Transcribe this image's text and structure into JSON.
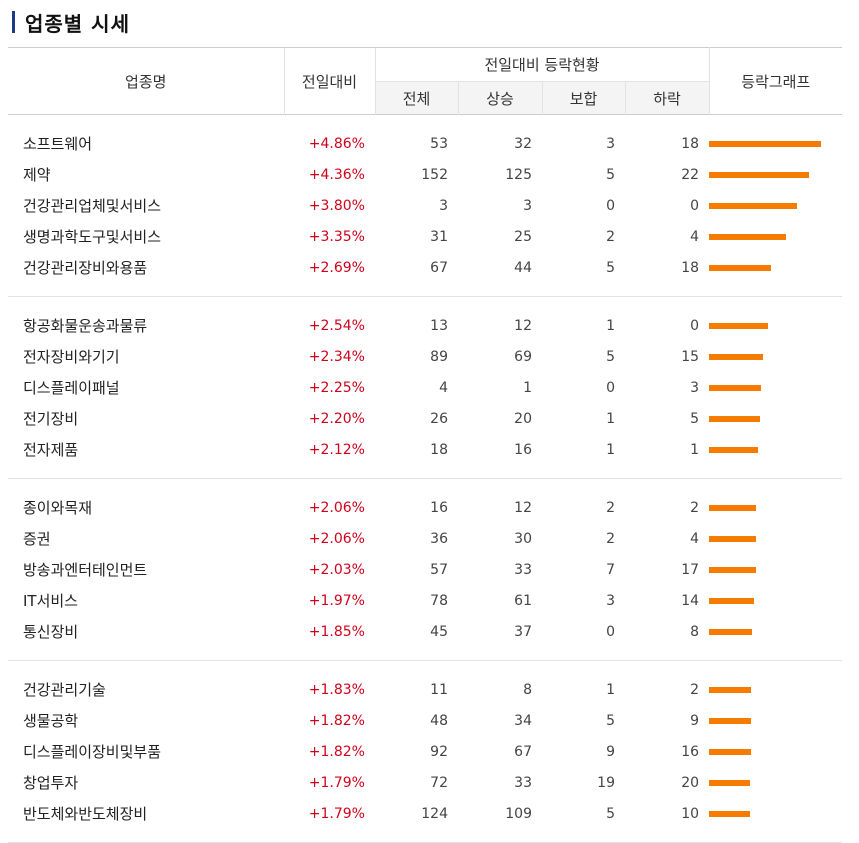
{
  "title": "업종별 시세",
  "headers": {
    "sector": "업종명",
    "change": "전일대비",
    "group": "전일대비 등락현황",
    "total": "전체",
    "up": "상승",
    "flat": "보합",
    "down": "하락",
    "graph": "등락그래프"
  },
  "colors": {
    "accent_bar": "#1f3a8a",
    "rate_up": "#d0021b",
    "graph_bar": "#f57c00"
  },
  "groups": [
    [
      {
        "name": "소프트웨어",
        "change": "+4.86%",
        "total": "53",
        "up": "32",
        "flat": "3",
        "down": "18",
        "pct": 4.86
      },
      {
        "name": "제약",
        "change": "+4.36%",
        "total": "152",
        "up": "125",
        "flat": "5",
        "down": "22",
        "pct": 4.36
      },
      {
        "name": "건강관리업체및서비스",
        "change": "+3.80%",
        "total": "3",
        "up": "3",
        "flat": "0",
        "down": "0",
        "pct": 3.8
      },
      {
        "name": "생명과학도구및서비스",
        "change": "+3.35%",
        "total": "31",
        "up": "25",
        "flat": "2",
        "down": "4",
        "pct": 3.35
      },
      {
        "name": "건강관리장비와용품",
        "change": "+2.69%",
        "total": "67",
        "up": "44",
        "flat": "5",
        "down": "18",
        "pct": 2.69
      }
    ],
    [
      {
        "name": "항공화물운송과물류",
        "change": "+2.54%",
        "total": "13",
        "up": "12",
        "flat": "1",
        "down": "0",
        "pct": 2.54
      },
      {
        "name": "전자장비와기기",
        "change": "+2.34%",
        "total": "89",
        "up": "69",
        "flat": "5",
        "down": "15",
        "pct": 2.34
      },
      {
        "name": "디스플레이패널",
        "change": "+2.25%",
        "total": "4",
        "up": "1",
        "flat": "0",
        "down": "3",
        "pct": 2.25
      },
      {
        "name": "전기장비",
        "change": "+2.20%",
        "total": "26",
        "up": "20",
        "flat": "1",
        "down": "5",
        "pct": 2.2
      },
      {
        "name": "전자제품",
        "change": "+2.12%",
        "total": "18",
        "up": "16",
        "flat": "1",
        "down": "1",
        "pct": 2.12
      }
    ],
    [
      {
        "name": "종이와목재",
        "change": "+2.06%",
        "total": "16",
        "up": "12",
        "flat": "2",
        "down": "2",
        "pct": 2.06
      },
      {
        "name": "증권",
        "change": "+2.06%",
        "total": "36",
        "up": "30",
        "flat": "2",
        "down": "4",
        "pct": 2.06
      },
      {
        "name": "방송과엔터테인먼트",
        "change": "+2.03%",
        "total": "57",
        "up": "33",
        "flat": "7",
        "down": "17",
        "pct": 2.03
      },
      {
        "name": "IT서비스",
        "change": "+1.97%",
        "total": "78",
        "up": "61",
        "flat": "3",
        "down": "14",
        "pct": 1.97
      },
      {
        "name": "통신장비",
        "change": "+1.85%",
        "total": "45",
        "up": "37",
        "flat": "0",
        "down": "8",
        "pct": 1.85
      }
    ],
    [
      {
        "name": "건강관리기술",
        "change": "+1.83%",
        "total": "11",
        "up": "8",
        "flat": "1",
        "down": "2",
        "pct": 1.83
      },
      {
        "name": "생물공학",
        "change": "+1.82%",
        "total": "48",
        "up": "34",
        "flat": "5",
        "down": "9",
        "pct": 1.82
      },
      {
        "name": "디스플레이장비및부품",
        "change": "+1.82%",
        "total": "92",
        "up": "67",
        "flat": "9",
        "down": "16",
        "pct": 1.82
      },
      {
        "name": "창업투자",
        "change": "+1.79%",
        "total": "72",
        "up": "33",
        "flat": "19",
        "down": "20",
        "pct": 1.79
      },
      {
        "name": "반도체와반도체장비",
        "change": "+1.79%",
        "total": "124",
        "up": "109",
        "flat": "5",
        "down": "10",
        "pct": 1.79
      }
    ]
  ]
}
